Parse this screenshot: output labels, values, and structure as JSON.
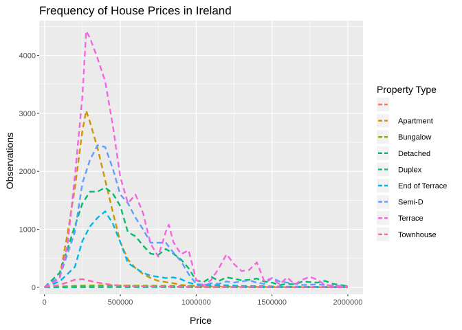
{
  "chart_data": {
    "type": "line",
    "title": "Frequency of House Prices in Ireland",
    "xlabel": "Price",
    "ylabel": "Observations",
    "xlim": [
      -35000,
      2100000
    ],
    "ylim": [
      -120,
      4600
    ],
    "x_ticks": [
      0,
      500000,
      1000000,
      1500000,
      2000000
    ],
    "x_tick_labels": [
      "0",
      "500000",
      "1000000",
      "1500000",
      "2000000"
    ],
    "y_ticks": [
      0,
      1000,
      2000,
      3000,
      4000
    ],
    "y_tick_labels": [
      "0",
      "1000",
      "2000",
      "3000",
      "4000"
    ],
    "grid": true,
    "legend": {
      "title": "Property Type",
      "placement": "right"
    },
    "series": [
      {
        "name": "",
        "color": "#F8766D",
        "x": [
          0,
          2000000
        ],
        "y": [
          5,
          5
        ]
      },
      {
        "name": "Apartment",
        "color": "#CD9600",
        "x": [
          0,
          100000,
          150000,
          200000,
          250000,
          275000,
          300000,
          350000,
          400000,
          450000,
          500000,
          550000,
          600000,
          650000,
          700000,
          750000,
          800000,
          850000,
          900000,
          950000,
          1000000,
          1100000,
          1200000,
          1300000,
          1400000,
          1500000,
          1600000,
          1700000,
          1800000,
          1900000,
          2000000
        ],
        "y": [
          0,
          180,
          900,
          1700,
          2700,
          3050,
          2850,
          2400,
          1850,
          1300,
          780,
          480,
          330,
          230,
          160,
          110,
          90,
          70,
          40,
          30,
          25,
          15,
          12,
          10,
          8,
          6,
          5,
          4,
          3,
          2,
          2
        ]
      },
      {
        "name": "Bungalow",
        "color": "#7CAE00",
        "x": [
          0,
          200000,
          400000,
          600000,
          800000,
          1000000,
          1200000,
          1400000,
          1600000,
          1800000,
          2000000
        ],
        "y": [
          0,
          25,
          35,
          30,
          25,
          18,
          12,
          8,
          5,
          3,
          2
        ]
      },
      {
        "name": "Detached",
        "color": "#00BE67",
        "x": [
          0,
          100000,
          150000,
          200000,
          250000,
          300000,
          350000,
          400000,
          450000,
          500000,
          550000,
          600000,
          650000,
          700000,
          750000,
          800000,
          850000,
          900000,
          950000,
          1000000,
          1050000,
          1100000,
          1150000,
          1200000,
          1250000,
          1300000,
          1350000,
          1400000,
          1450000,
          1500000,
          1550000,
          1600000,
          1650000,
          1700000,
          1750000,
          1800000,
          1850000,
          1900000,
          1950000,
          2000000
        ],
        "y": [
          0,
          250,
          650,
          1050,
          1450,
          1650,
          1650,
          1720,
          1620,
          1400,
          950,
          880,
          720,
          580,
          560,
          660,
          580,
          480,
          330,
          120,
          90,
          180,
          110,
          170,
          150,
          120,
          130,
          150,
          100,
          80,
          40,
          60,
          50,
          100,
          90,
          80,
          110,
          60,
          40,
          20
        ]
      },
      {
        "name": "Duplex",
        "color": "#00C19A",
        "x": [
          0,
          400000,
          800000,
          1200000,
          1600000,
          2000000
        ],
        "y": [
          0,
          3,
          3,
          2,
          1,
          1
        ]
      },
      {
        "name": "End of Terrace",
        "color": "#00B8E7",
        "x": [
          0,
          100000,
          200000,
          250000,
          300000,
          350000,
          400000,
          450000,
          500000,
          550000,
          600000,
          650000,
          700000,
          750000,
          800000,
          850000,
          900000,
          950000,
          1000000,
          1100000,
          1200000,
          1300000,
          1400000,
          1500000,
          1600000,
          1700000,
          1800000,
          1900000,
          2000000
        ],
        "y": [
          0,
          100,
          350,
          800,
          1050,
          1200,
          1310,
          1100,
          780,
          420,
          330,
          250,
          200,
          180,
          160,
          170,
          140,
          80,
          50,
          40,
          35,
          25,
          20,
          15,
          12,
          10,
          8,
          5,
          4
        ]
      },
      {
        "name": "Semi-D",
        "color": "#619CFF",
        "x": [
          0,
          100000,
          200000,
          250000,
          300000,
          350000,
          400000,
          450000,
          500000,
          550000,
          600000,
          650000,
          700000,
          750000,
          800000,
          850000,
          900000,
          950000,
          1000000,
          1050000,
          1100000,
          1150000,
          1200000,
          1250000,
          1300000,
          1350000,
          1400000,
          1450000,
          1500000,
          1550000,
          1600000,
          1700000,
          1800000,
          1900000,
          2000000
        ],
        "y": [
          0,
          180,
          950,
          1800,
          2200,
          2450,
          2420,
          2050,
          1600,
          1450,
          1200,
          1000,
          770,
          770,
          770,
          600,
          450,
          230,
          60,
          40,
          70,
          60,
          100,
          80,
          100,
          120,
          80,
          60,
          160,
          100,
          80,
          40,
          50,
          30,
          20
        ]
      },
      {
        "name": "Terrace",
        "color": "#F564E3",
        "x": [
          0,
          100000,
          150000,
          200000,
          250000,
          275000,
          300000,
          350000,
          400000,
          450000,
          500000,
          550000,
          600000,
          650000,
          700000,
          750000,
          800000,
          820000,
          850000,
          900000,
          950000,
          1000000,
          1050000,
          1100000,
          1150000,
          1200000,
          1250000,
          1300000,
          1350000,
          1400000,
          1450000,
          1500000,
          1550000,
          1600000,
          1650000,
          1700000,
          1750000,
          1800000,
          1850000,
          1900000,
          1950000,
          2000000
        ],
        "y": [
          0,
          150,
          700,
          1900,
          3300,
          4420,
          4300,
          3950,
          3550,
          2800,
          1900,
          1450,
          1600,
          1280,
          750,
          530,
          960,
          1080,
          780,
          570,
          640,
          130,
          30,
          130,
          330,
          570,
          400,
          280,
          300,
          430,
          100,
          160,
          50,
          170,
          50,
          130,
          180,
          130,
          40,
          30,
          20,
          10
        ]
      },
      {
        "name": "Townhouse",
        "color": "#FF64B0",
        "x": [
          0,
          100000,
          200000,
          250000,
          300000,
          350000,
          400000,
          450000,
          500000,
          550000,
          600000,
          700000,
          800000,
          900000,
          1000000,
          1200000,
          1400000,
          1600000,
          1800000,
          2000000
        ],
        "y": [
          0,
          40,
          130,
          140,
          110,
          80,
          60,
          40,
          30,
          25,
          20,
          15,
          10,
          8,
          5,
          4,
          3,
          2,
          2,
          1
        ]
      }
    ]
  }
}
